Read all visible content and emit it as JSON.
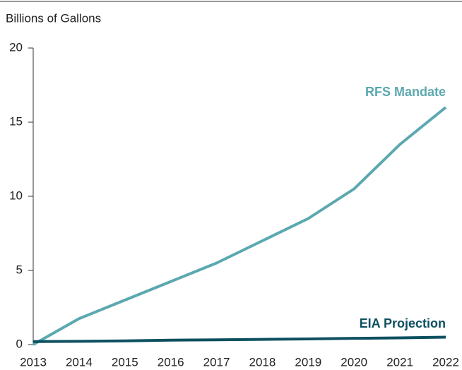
{
  "chart_data": {
    "type": "line",
    "y_label": "Billions of Gallons",
    "x": [
      2013,
      2014,
      2015,
      2016,
      2017,
      2018,
      2019,
      2020,
      2021,
      2022
    ],
    "xlim": [
      2013,
      2022
    ],
    "xticks": [
      2013,
      2014,
      2015,
      2016,
      2017,
      2018,
      2019,
      2020,
      2021,
      2022
    ],
    "ylim": [
      0,
      20
    ],
    "yticks": [
      0,
      5,
      10,
      15,
      20
    ],
    "series": [
      {
        "name": "RFS Mandate",
        "color": "#5ba8b0",
        "values": [
          0,
          1.75,
          3.0,
          4.25,
          5.5,
          7.0,
          8.5,
          10.5,
          13.5,
          16
        ]
      },
      {
        "name": "EIA Projection",
        "color": "#0d5060",
        "values": [
          0.2,
          0.22,
          0.25,
          0.3,
          0.32,
          0.35,
          0.38,
          0.42,
          0.45,
          0.5
        ]
      }
    ]
  }
}
